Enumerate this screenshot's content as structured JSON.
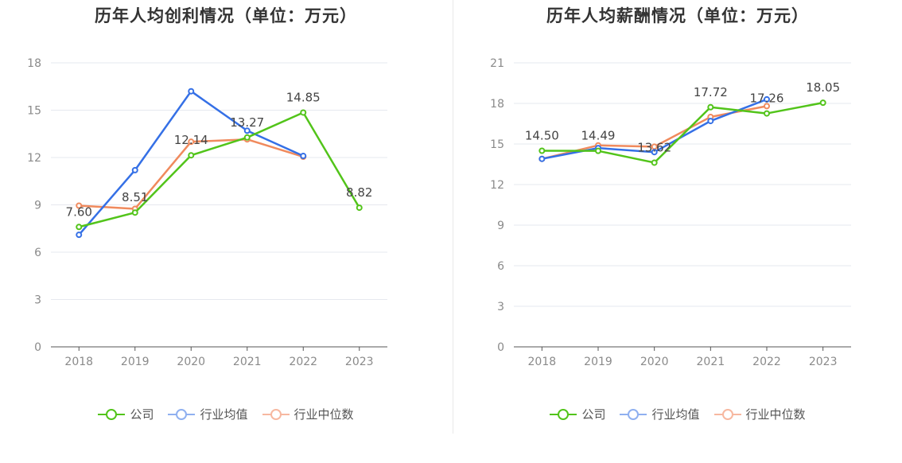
{
  "legend": [
    {
      "label": "公司",
      "color": "#52c41a"
    },
    {
      "label": "行业均值",
      "color": "#3570e6"
    },
    {
      "label": "行业中位数",
      "color": "#f08a5d"
    }
  ],
  "legend_faded_colors": [
    "#52c41a",
    "#8fb0f0",
    "#f7b8a0"
  ],
  "chart_data": [
    {
      "type": "line",
      "title": "历年人均创利情况（单位：万元）",
      "categories": [
        "2018",
        "2019",
        "2020",
        "2021",
        "2022",
        "2023"
      ],
      "ylim": [
        0,
        18
      ],
      "yticks": [
        0,
        3,
        6,
        9,
        12,
        15,
        18
      ],
      "grid": true,
      "legend_position": "bottom",
      "series": [
        {
          "name": "公司",
          "color": "#52c41a",
          "values": [
            7.6,
            8.51,
            12.14,
            13.27,
            14.85,
            8.82
          ],
          "labels": [
            "7.60",
            "8.51",
            "12.14",
            "13.27",
            "14.85",
            "8.82"
          ]
        },
        {
          "name": "行业均值",
          "color": "#3570e6",
          "values": [
            7.1,
            11.2,
            16.2,
            13.7,
            12.1,
            null
          ]
        },
        {
          "name": "行业中位数",
          "color": "#f08a5d",
          "values": [
            8.95,
            8.75,
            13.0,
            13.15,
            12.05,
            null
          ]
        }
      ]
    },
    {
      "type": "line",
      "title": "历年人均薪酬情况（单位：万元）",
      "categories": [
        "2018",
        "2019",
        "2020",
        "2021",
        "2022",
        "2023"
      ],
      "ylim": [
        0,
        21
      ],
      "yticks": [
        0,
        3,
        6,
        9,
        12,
        15,
        18,
        21
      ],
      "grid": true,
      "legend_position": "bottom",
      "series": [
        {
          "name": "公司",
          "color": "#52c41a",
          "values": [
            14.5,
            14.49,
            13.62,
            17.72,
            17.26,
            18.05
          ],
          "labels": [
            "14.50",
            "14.49",
            "13.62",
            "17.72",
            "17.26",
            "18.05"
          ]
        },
        {
          "name": "行业均值",
          "color": "#3570e6",
          "values": [
            13.9,
            14.7,
            14.4,
            16.7,
            18.3,
            null
          ]
        },
        {
          "name": "行业中位数",
          "color": "#f08a5d",
          "values": [
            13.9,
            14.9,
            14.8,
            17.0,
            17.8,
            null
          ]
        }
      ]
    }
  ]
}
